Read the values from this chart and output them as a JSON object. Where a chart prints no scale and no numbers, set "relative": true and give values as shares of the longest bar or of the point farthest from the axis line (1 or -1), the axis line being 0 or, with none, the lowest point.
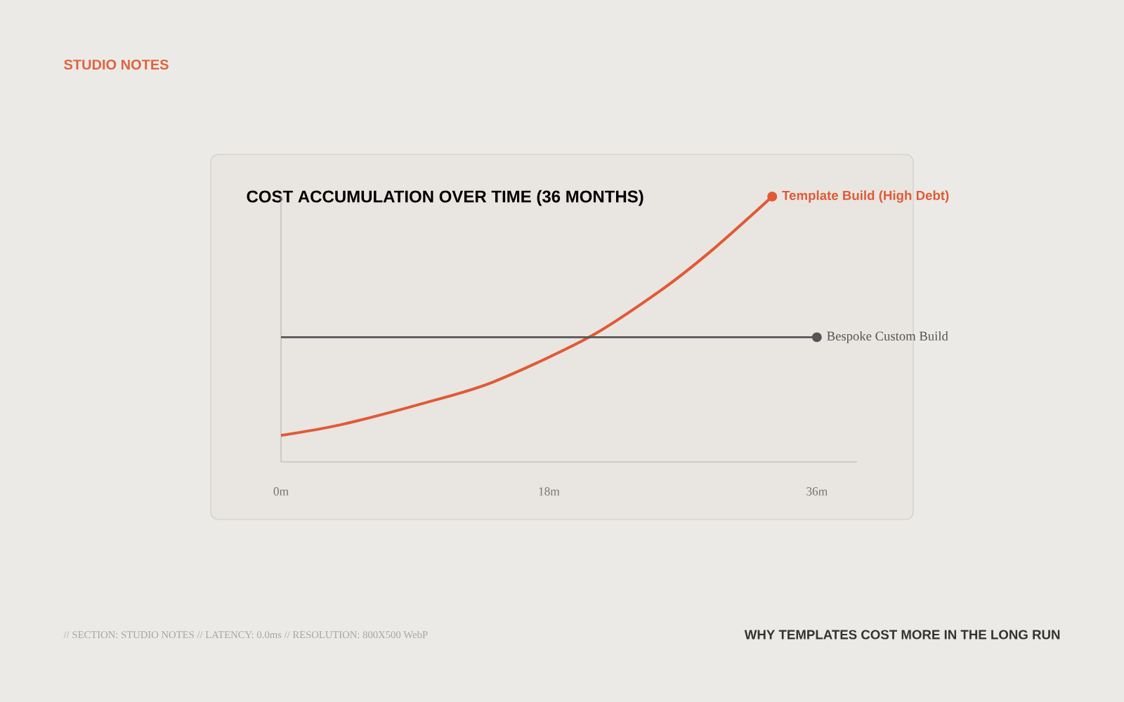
{
  "chart_data": {
    "type": "line",
    "title": "COST ACCUMULATION OVER TIME (36 MONTHS)",
    "relative": true,
    "xlim": [
      0,
      38.7
    ],
    "xticks": [
      {
        "value": 0,
        "label": "0m"
      },
      {
        "value": 18,
        "label": "18m"
      },
      {
        "value": 36,
        "label": "36m"
      }
    ],
    "series": [
      {
        "name": "Template Build (High Debt)",
        "color": "#e05a36",
        "x": [
          0,
          4,
          9.5,
          14.2,
          20.7,
          25.6,
          29,
          33
        ],
        "values": [
          0.1,
          0.14,
          0.22,
          0.3,
          0.47,
          0.65,
          0.8,
          1
        ]
      },
      {
        "name": "Bespoke Custom Build",
        "color": "#555555",
        "x": [
          0,
          36
        ],
        "values": [
          0.47,
          0.47
        ]
      }
    ],
    "grid": false,
    "annotations": [
      "STUDIO NOTES",
      "// SECTION: STUDIO NOTES // LATENCY: 0.0ms // RESOLUTION: 800X500 WebP",
      "WHY TEMPLATES COST MORE IN THE LONG RUN"
    ]
  }
}
